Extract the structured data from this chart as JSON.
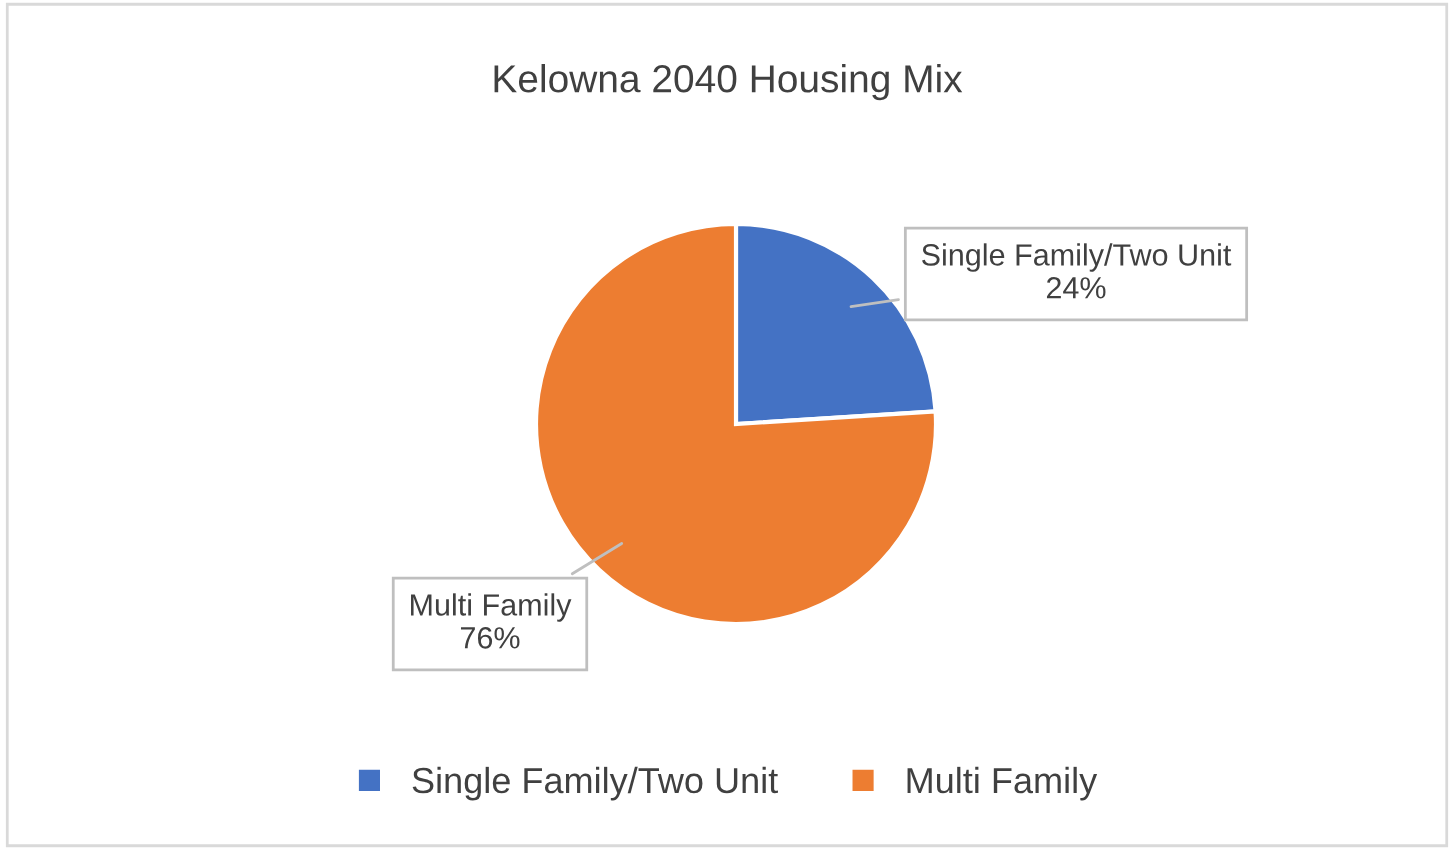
{
  "chart_data": {
    "type": "pie",
    "title": "Kelowna 2040 Housing Mix",
    "categories": [
      "Single Family/Two Unit",
      "Multi Family"
    ],
    "values": [
      24,
      76
    ],
    "colors": [
      "#4472c4",
      "#ed7d31"
    ],
    "value_labels": [
      "24%",
      "76%"
    ],
    "legend": "bottom"
  }
}
